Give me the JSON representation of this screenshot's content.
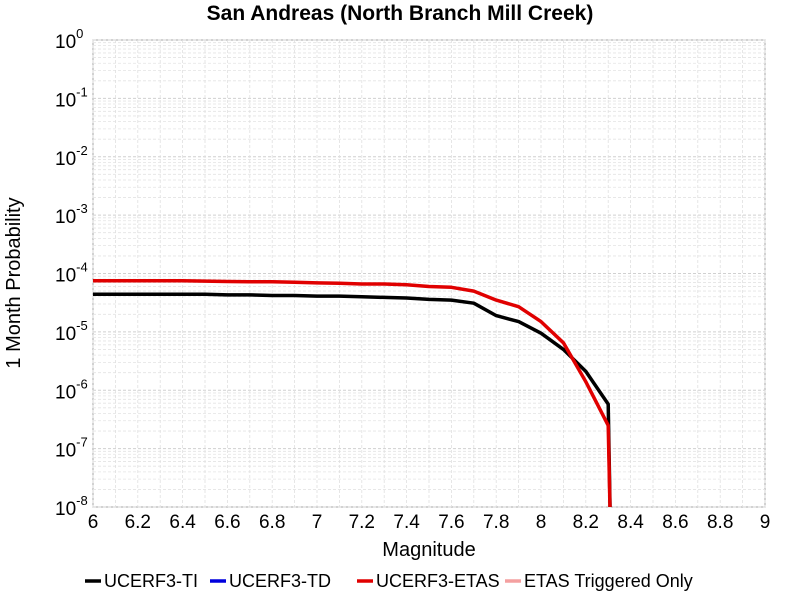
{
  "chart_data": {
    "type": "line",
    "title": "San Andreas (North Branch Mill Creek)",
    "xlabel": "Magnitude",
    "ylabel": "1 Month Probability",
    "xlim": [
      6,
      9
    ],
    "ylim": [
      1e-08,
      1
    ],
    "yscale": "log",
    "grid": true,
    "legend_position": "bottom",
    "x_ticks": [
      "6",
      "6.2",
      "6.4",
      "6.6",
      "6.8",
      "7",
      "7.2",
      "7.4",
      "7.6",
      "7.8",
      "8",
      "8.2",
      "8.4",
      "8.6",
      "8.8",
      "9"
    ],
    "y_ticks": [
      {
        "base": "10",
        "exp": "0",
        "value": 1
      },
      {
        "base": "10",
        "exp": "-1",
        "value": 0.1
      },
      {
        "base": "10",
        "exp": "-2",
        "value": 0.01
      },
      {
        "base": "10",
        "exp": "-3",
        "value": 0.001
      },
      {
        "base": "10",
        "exp": "-4",
        "value": 0.0001
      },
      {
        "base": "10",
        "exp": "-5",
        "value": 1e-05
      },
      {
        "base": "10",
        "exp": "-6",
        "value": 1e-06
      },
      {
        "base": "10",
        "exp": "-7",
        "value": 1e-07
      },
      {
        "base": "10",
        "exp": "-8",
        "value": 1e-08
      }
    ],
    "series": [
      {
        "name": "UCERF3-TI",
        "color": "#000000",
        "x": [
          6.0,
          6.1,
          6.2,
          6.3,
          6.4,
          6.5,
          6.6,
          6.7,
          6.8,
          6.9,
          7.0,
          7.1,
          7.2,
          7.3,
          7.4,
          7.5,
          7.6,
          7.7,
          7.8,
          7.9,
          8.0,
          8.1,
          8.2,
          8.3,
          8.31
        ],
        "y": [
          4.4e-05,
          4.4e-05,
          4.4e-05,
          4.4e-05,
          4.4e-05,
          4.4e-05,
          4.3e-05,
          4.3e-05,
          4.2e-05,
          4.2e-05,
          4.1e-05,
          4.1e-05,
          4e-05,
          3.9e-05,
          3.8e-05,
          3.6e-05,
          3.5e-05,
          3.1e-05,
          1.9e-05,
          1.5e-05,
          9.5e-06,
          5e-06,
          2.1e-06,
          5.8e-07,
          1e-09
        ]
      },
      {
        "name": "UCERF3-TD",
        "color": "#0000dd",
        "x": [],
        "y": []
      },
      {
        "name": "UCERF3-ETAS",
        "color": "#e00000",
        "x": [
          6.0,
          6.1,
          6.2,
          6.3,
          6.4,
          6.5,
          6.6,
          6.7,
          6.8,
          6.9,
          7.0,
          7.1,
          7.2,
          7.3,
          7.4,
          7.5,
          7.6,
          7.7,
          7.8,
          7.9,
          8.0,
          8.1,
          8.2,
          8.3,
          8.31
        ],
        "y": [
          7.5e-05,
          7.5e-05,
          7.5e-05,
          7.5e-05,
          7.5e-05,
          7.4e-05,
          7.3e-05,
          7.2e-05,
          7.2e-05,
          7.1e-05,
          6.9e-05,
          6.8e-05,
          6.6e-05,
          6.6e-05,
          6.4e-05,
          6e-05,
          5.8e-05,
          5e-05,
          3.5e-05,
          2.7e-05,
          1.5e-05,
          6.5e-06,
          1.4e-06,
          2.5e-07,
          1e-09
        ]
      },
      {
        "name": "ETAS Triggered Only",
        "color": "#f4a0a0",
        "x": [],
        "y": []
      }
    ]
  }
}
